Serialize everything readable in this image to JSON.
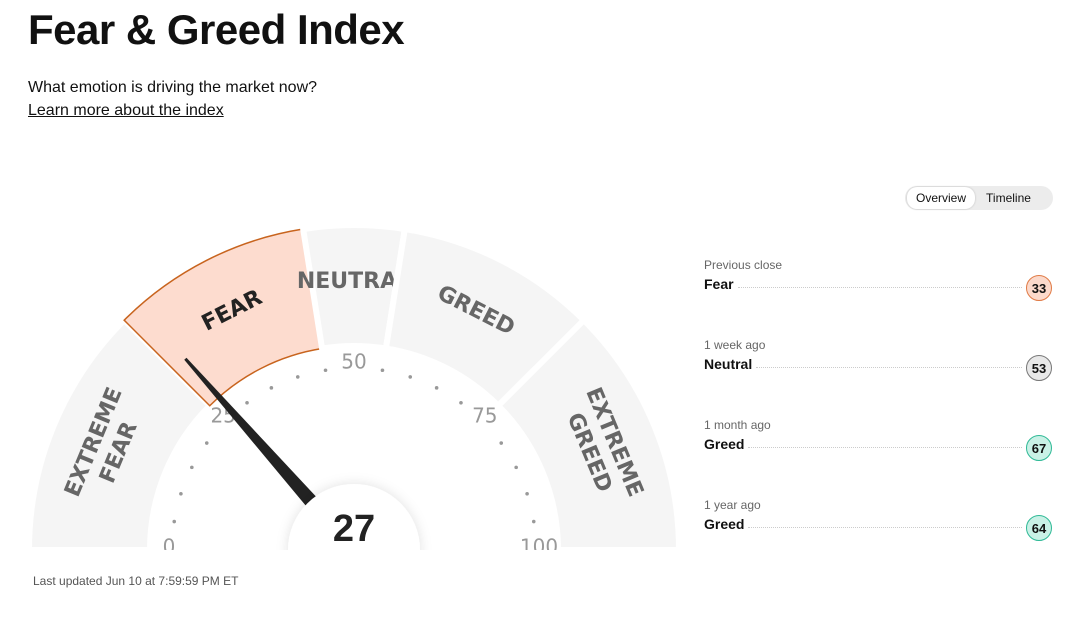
{
  "header": {
    "title": "Fear & Greed Index",
    "subtitle": "What emotion is driving the market now?",
    "link": "Learn more about the index"
  },
  "tabs": [
    "Overview",
    "Timeline"
  ],
  "gauge": {
    "value": 27,
    "min": 0,
    "max": 100,
    "scale_labels": [
      0,
      25,
      50,
      75,
      100
    ],
    "segments": [
      {
        "label": "EXTREME FEAR",
        "from": 0,
        "to": 25
      },
      {
        "label": "FEAR",
        "from": 25,
        "to": 45
      },
      {
        "label": "NEUTRAL",
        "from": 45,
        "to": 55
      },
      {
        "label": "GREED",
        "from": 55,
        "to": 75
      },
      {
        "label": "EXTREME GREED",
        "from": 75,
        "to": 100
      }
    ]
  },
  "updated": "Last updated Jun 10 at 7:59:59 PM ET",
  "history": [
    {
      "period": "Previous close",
      "rating": "Fear",
      "value": 33,
      "color": "#fbd9cb",
      "border": "#e07a45"
    },
    {
      "period": "1 week ago",
      "rating": "Neutral",
      "value": 53,
      "color": "#e8e8e8",
      "border": "#777777"
    },
    {
      "period": "1 month ago",
      "rating": "Greed",
      "value": 67,
      "color": "#c9f1e6",
      "border": "#2fb996"
    },
    {
      "period": "1 year ago",
      "rating": "Greed",
      "value": 64,
      "color": "#c9f1e6",
      "border": "#2fb996"
    }
  ]
}
